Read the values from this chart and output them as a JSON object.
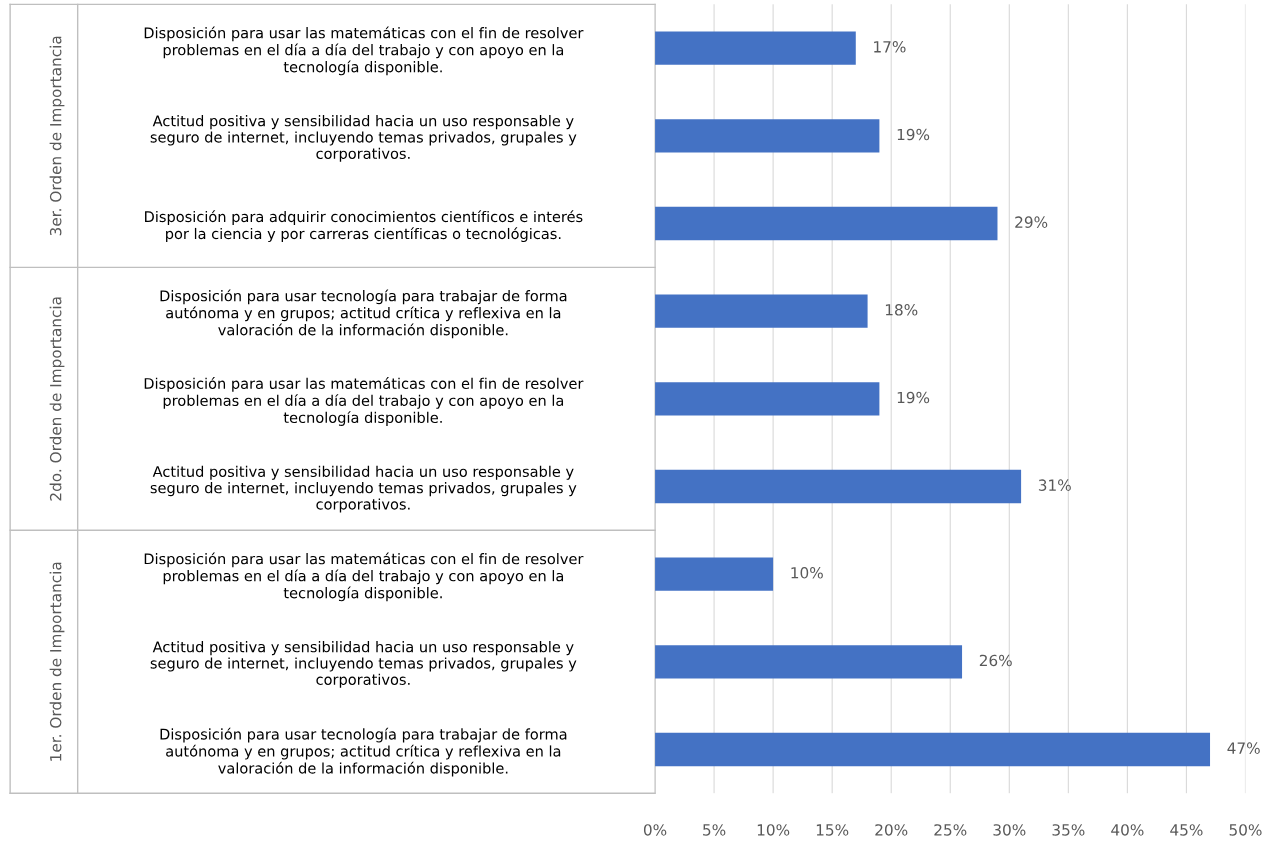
{
  "chart_data": {
    "type": "bar",
    "orientation": "horizontal",
    "categories": [
      "Disposición para usar las matemáticas con el fin de resolver\nproblemas en el día a día del trabajo y con apoyo en la\ntecnología disponible.",
      "Actitud positiva y sensibilidad hacia un uso responsable y\nseguro de internet, incluyendo temas privados, grupales y\ncorporativos.",
      "Disposición para adquirir conocimientos científicos e interés\npor la ciencia y por carreras científicas o tecnológicas.",
      "Disposición para usar tecnología para trabajar de forma\nautónoma y en grupos; actitud crítica y reflexiva en la\nvaloración de la información disponible.",
      "Disposición para usar las matemáticas con el fin de resolver\nproblemas en el día a día del trabajo y con apoyo en la\ntecnología disponible.",
      "Actitud positiva y sensibilidad hacia un uso responsable y\nseguro de internet, incluyendo temas privados, grupales y\ncorporativos.",
      "Disposición para usar las matemáticas con el fin de resolver\nproblemas en el día a día del trabajo y con apoyo en la\ntecnología disponible.",
      "Actitud positiva y sensibilidad hacia un uso responsable y\nseguro de internet, incluyendo temas privados, grupales y\ncorporativos.",
      "Disposición para usar tecnología para trabajar de forma\nautónoma y en grupos; actitud crítica y reflexiva en la\nvaloración de la información disponible."
    ],
    "values": [
      17,
      19,
      29,
      18,
      19,
      31,
      10,
      26,
      47
    ],
    "value_labels": [
      "17%",
      "19%",
      "29%",
      "18%",
      "19%",
      "31%",
      "10%",
      "26%",
      "47%"
    ],
    "color": "#4472c4",
    "xlim": [
      0,
      50
    ],
    "xticks": [
      {
        "value": 0,
        "label": "0%"
      },
      {
        "value": 5,
        "label": "5%"
      },
      {
        "value": 10,
        "label": "10%"
      },
      {
        "value": 15,
        "label": "15%"
      },
      {
        "value": 20,
        "label": "20%"
      },
      {
        "value": 25,
        "label": "25%"
      },
      {
        "value": 30,
        "label": "30%"
      },
      {
        "value": 35,
        "label": "35%"
      },
      {
        "value": 40,
        "label": "40%"
      },
      {
        "value": 45,
        "label": "45%"
      },
      {
        "value": 50,
        "label": "50%"
      }
    ],
    "grid": "x",
    "annotations": [
      "3er. Orden de Importancia",
      "2do. Orden de Importancia",
      "1er. Orden de Importancia"
    ]
  }
}
